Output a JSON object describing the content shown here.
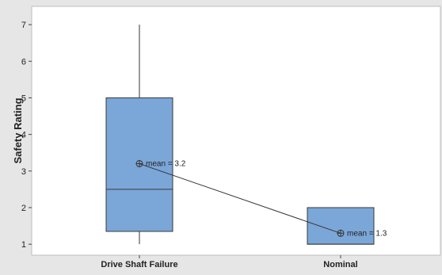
{
  "chart_data": {
    "type": "boxplot",
    "title": "",
    "xlabel": "",
    "ylabel": "Safety Rating",
    "ylim": [
      0.7,
      7.5
    ],
    "yticks": [
      1,
      2,
      3,
      4,
      5,
      6,
      7
    ],
    "grid": false,
    "categories": [
      "Drive Shaft Failure",
      "Nominal"
    ],
    "boxes": [
      {
        "category": "Drive Shaft Failure",
        "min": 1,
        "q1": 1.35,
        "median": 2.5,
        "q3": 5,
        "max": 7,
        "mean": 3.2,
        "mean_label": "mean = 3.2"
      },
      {
        "category": "Nominal",
        "min": 1,
        "q1": 1,
        "median": 1,
        "q3": 2,
        "max": 2,
        "mean": 1.3,
        "mean_label": "mean = 1.3"
      }
    ],
    "mean_connect_line": true,
    "colors": {
      "box_fill": "#7ba6d8",
      "box_stroke": "#3a3a3a",
      "line": "#333333",
      "plot_bg": "#ffffff",
      "figure_bg": "#e6e6e6"
    }
  }
}
